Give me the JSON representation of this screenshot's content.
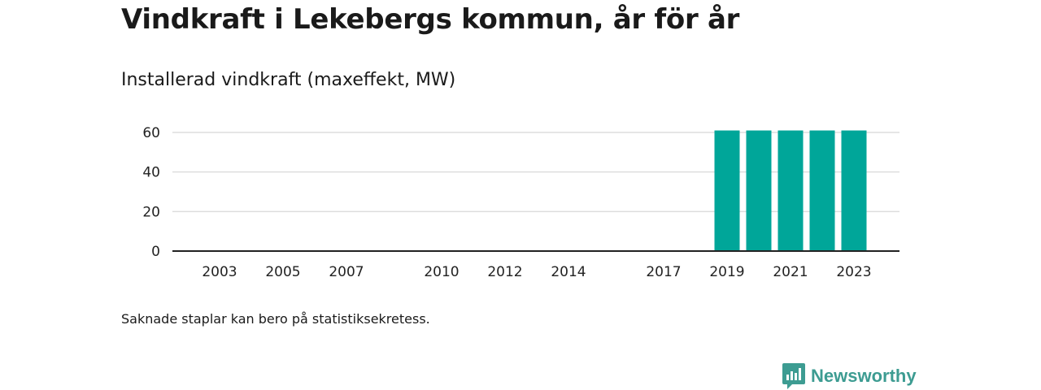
{
  "header": {
    "title": "Vindkraft i Lekebergs kommun, år för år",
    "subtitle": "Installerad vindkraft (maxeffekt, MW)"
  },
  "footer": {
    "note": "Saknade staplar kan bero på statistiksekretess.",
    "brand": "Newsworthy"
  },
  "colors": {
    "bar": "#00a699",
    "brand": "#3d9c92",
    "grid": "#dddddd",
    "axis": "#222222"
  },
  "chart_data": {
    "type": "bar",
    "categories": [
      "2002",
      "2003",
      "2004",
      "2005",
      "2006",
      "2007",
      "2008",
      "2009",
      "2010",
      "2011",
      "2012",
      "2013",
      "2014",
      "2015",
      "2016",
      "2017",
      "2018",
      "2019",
      "2020",
      "2021",
      "2022",
      "2023"
    ],
    "values": [
      0,
      0,
      0,
      0,
      0,
      0,
      0,
      0,
      0,
      0,
      0,
      0,
      0,
      0,
      0,
      0,
      0,
      61,
      61,
      61,
      61,
      61
    ],
    "x_tick_labels": [
      "2003",
      "2005",
      "2007",
      "2010",
      "2012",
      "2014",
      "2017",
      "2019",
      "2021",
      "2023"
    ],
    "y_ticks": [
      0,
      20,
      40,
      60
    ],
    "ylim": [
      0,
      60
    ],
    "title": "Vindkraft i Lekebergs kommun, år för år",
    "subtitle": "Installerad vindkraft (maxeffekt, MW)",
    "grid": true
  }
}
